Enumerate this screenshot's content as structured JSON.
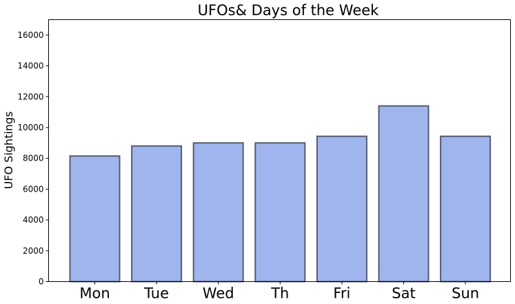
{
  "chart_data": {
    "type": "bar",
    "title": "UFOs& Days of the Week",
    "xlabel": "",
    "ylabel": "UFO Sightings",
    "categories": [
      "Mon",
      "Tue",
      "Wed",
      "Th",
      "Fri",
      "Sat",
      "Sun"
    ],
    "values": [
      8150,
      8800,
      9000,
      9000,
      9430,
      11400,
      9430
    ],
    "ylim": [
      0,
      17000
    ],
    "yticks": [
      "0",
      "2000",
      "4000",
      "6000",
      "8000",
      "10000",
      "12000",
      "14000",
      "16000"
    ],
    "grid": false,
    "legend": "none",
    "colors": {
      "bar_fill": "#a0b4ee",
      "bar_edge": "#555a6e",
      "axis": "#000000"
    }
  }
}
